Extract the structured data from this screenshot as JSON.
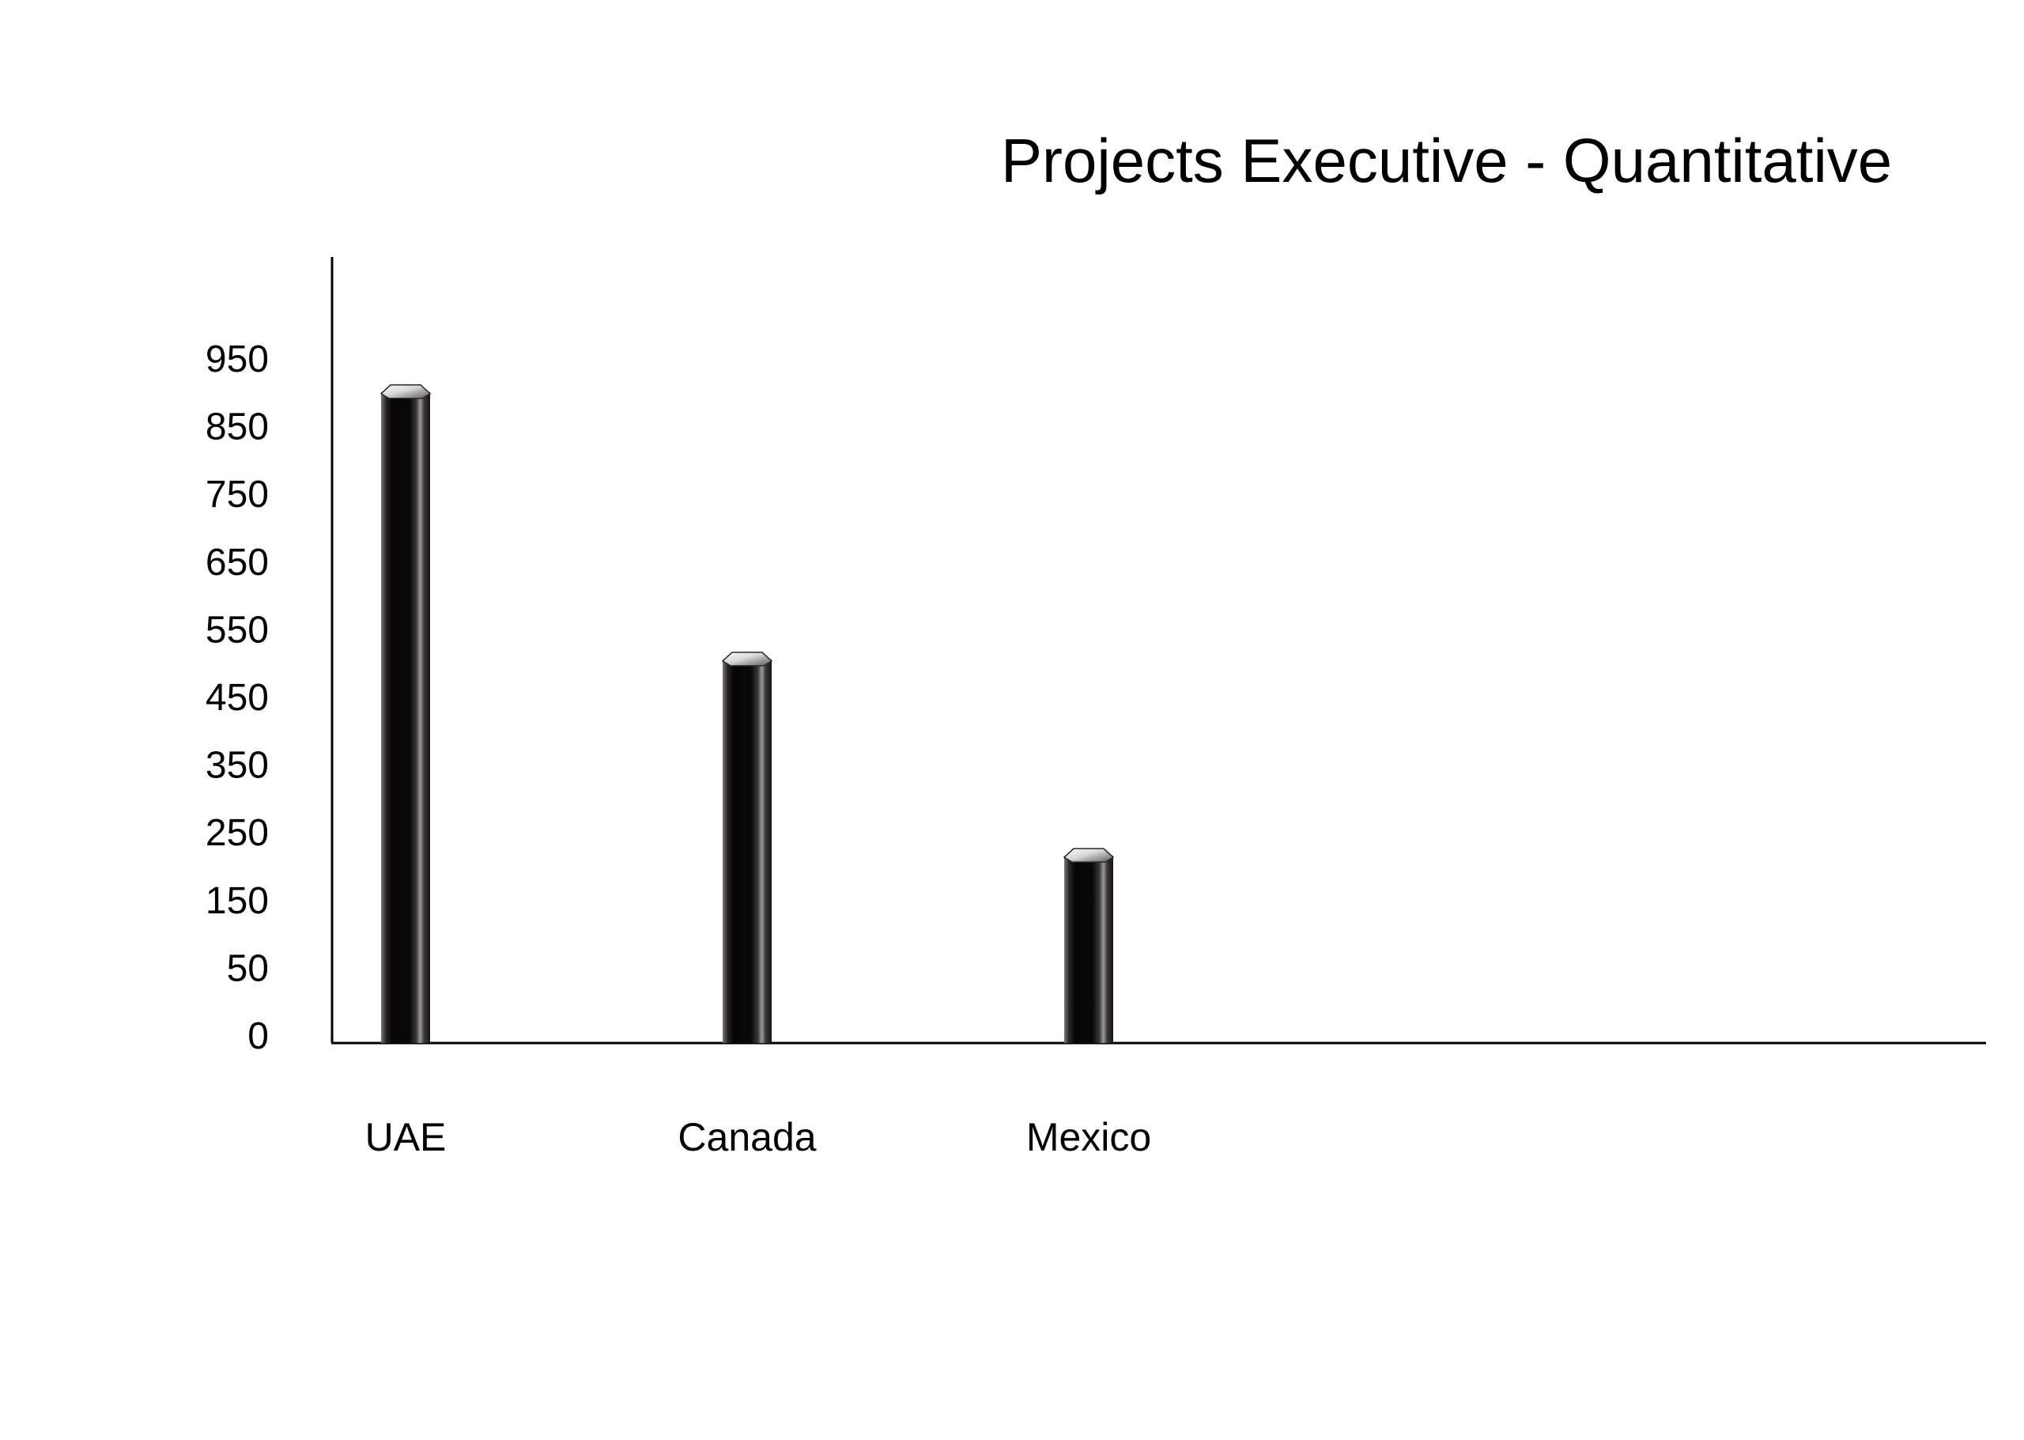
{
  "chart_data": {
    "type": "bar",
    "title": "Projects Executive - Quantitative",
    "xlabel": "",
    "ylabel": "",
    "categories": [
      "UAE",
      "Canada",
      "Mexico"
    ],
    "values": [
      900,
      505,
      215
    ],
    "y_ticks": [
      0,
      50,
      150,
      250,
      350,
      450,
      550,
      650,
      750,
      850,
      950
    ],
    "ylim": [
      0,
      1150
    ],
    "grid": false,
    "legend": "none",
    "bar_color": "#1a1718",
    "axis_color": "#000000"
  }
}
